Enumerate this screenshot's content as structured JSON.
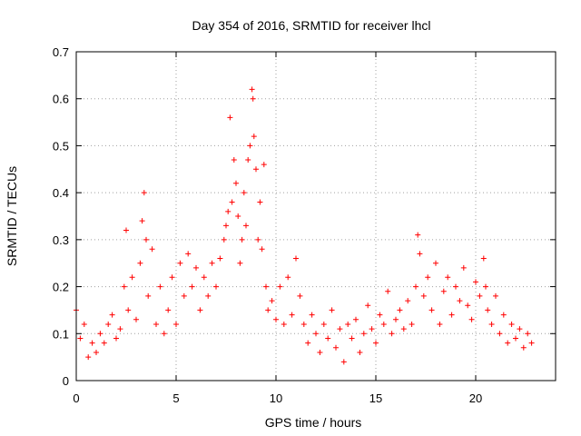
{
  "chart_data": {
    "type": "scatter",
    "title": "Day 354 of 2016, SRMTID for receiver lhcl",
    "xlabel": "GPS time / hours",
    "ylabel": "SRMTID / TECUs",
    "xlim": [
      0,
      24
    ],
    "ylim": [
      0,
      0.7
    ],
    "xticks": [
      "0",
      "5",
      "10",
      "15",
      "20"
    ],
    "xtick_values": [
      0,
      5,
      10,
      15,
      20
    ],
    "yticks": [
      "0",
      "0.1",
      "0.2",
      "0.3",
      "0.4",
      "0.5",
      "0.6",
      "0.7"
    ],
    "ytick_values": [
      0,
      0.1,
      0.2,
      0.3,
      0.4,
      0.5,
      0.6,
      0.7
    ],
    "grid": true,
    "marker": "+",
    "color": "#ff0000",
    "series": [
      {
        "name": "SRMTID",
        "x": [
          0.0,
          0.2,
          0.4,
          0.6,
          0.8,
          1.0,
          1.2,
          1.4,
          1.6,
          1.8,
          2.0,
          2.2,
          2.4,
          2.5,
          2.6,
          2.8,
          3.0,
          3.2,
          3.3,
          3.4,
          3.5,
          3.6,
          3.8,
          4.0,
          4.2,
          4.4,
          4.6,
          4.8,
          5.0,
          5.2,
          5.4,
          5.6,
          5.8,
          6.0,
          6.2,
          6.4,
          6.6,
          6.8,
          7.0,
          7.2,
          7.4,
          7.5,
          7.6,
          7.7,
          7.8,
          7.9,
          8.0,
          8.1,
          8.2,
          8.3,
          8.4,
          8.5,
          8.6,
          8.7,
          8.8,
          8.85,
          8.9,
          9.0,
          9.1,
          9.2,
          9.3,
          9.4,
          9.5,
          9.6,
          9.8,
          10.0,
          10.2,
          10.4,
          10.6,
          10.8,
          11.0,
          11.2,
          11.4,
          11.6,
          11.8,
          12.0,
          12.2,
          12.4,
          12.6,
          12.8,
          13.0,
          13.2,
          13.4,
          13.6,
          13.8,
          14.0,
          14.2,
          14.4,
          14.6,
          14.8,
          15.0,
          15.2,
          15.4,
          15.6,
          15.8,
          16.0,
          16.2,
          16.4,
          16.6,
          16.8,
          17.0,
          17.1,
          17.2,
          17.4,
          17.6,
          17.8,
          18.0,
          18.2,
          18.4,
          18.6,
          18.8,
          19.0,
          19.2,
          19.4,
          19.6,
          19.8,
          20.0,
          20.2,
          20.4,
          20.5,
          20.6,
          20.8,
          21.0,
          21.2,
          21.4,
          21.6,
          21.8,
          22.0,
          22.2,
          22.4,
          22.6,
          22.8
        ],
        "y": [
          0.15,
          0.09,
          0.12,
          0.05,
          0.08,
          0.06,
          0.1,
          0.08,
          0.12,
          0.14,
          0.09,
          0.11,
          0.2,
          0.32,
          0.15,
          0.22,
          0.13,
          0.25,
          0.34,
          0.4,
          0.3,
          0.18,
          0.28,
          0.12,
          0.2,
          0.1,
          0.15,
          0.22,
          0.12,
          0.25,
          0.18,
          0.27,
          0.2,
          0.24,
          0.15,
          0.22,
          0.18,
          0.25,
          0.2,
          0.26,
          0.3,
          0.33,
          0.36,
          0.56,
          0.38,
          0.47,
          0.42,
          0.35,
          0.25,
          0.3,
          0.4,
          0.33,
          0.47,
          0.5,
          0.62,
          0.6,
          0.52,
          0.45,
          0.3,
          0.38,
          0.28,
          0.46,
          0.2,
          0.15,
          0.17,
          0.13,
          0.2,
          0.12,
          0.22,
          0.14,
          0.26,
          0.18,
          0.12,
          0.08,
          0.14,
          0.1,
          0.06,
          0.12,
          0.09,
          0.15,
          0.07,
          0.11,
          0.04,
          0.12,
          0.09,
          0.13,
          0.06,
          0.1,
          0.16,
          0.11,
          0.08,
          0.14,
          0.12,
          0.19,
          0.1,
          0.13,
          0.15,
          0.11,
          0.17,
          0.12,
          0.2,
          0.31,
          0.27,
          0.18,
          0.22,
          0.15,
          0.25,
          0.12,
          0.19,
          0.22,
          0.14,
          0.2,
          0.17,
          0.24,
          0.16,
          0.13,
          0.21,
          0.18,
          0.26,
          0.2,
          0.15,
          0.12,
          0.18,
          0.1,
          0.14,
          0.08,
          0.12,
          0.09,
          0.11,
          0.07,
          0.1,
          0.08
        ]
      }
    ]
  }
}
